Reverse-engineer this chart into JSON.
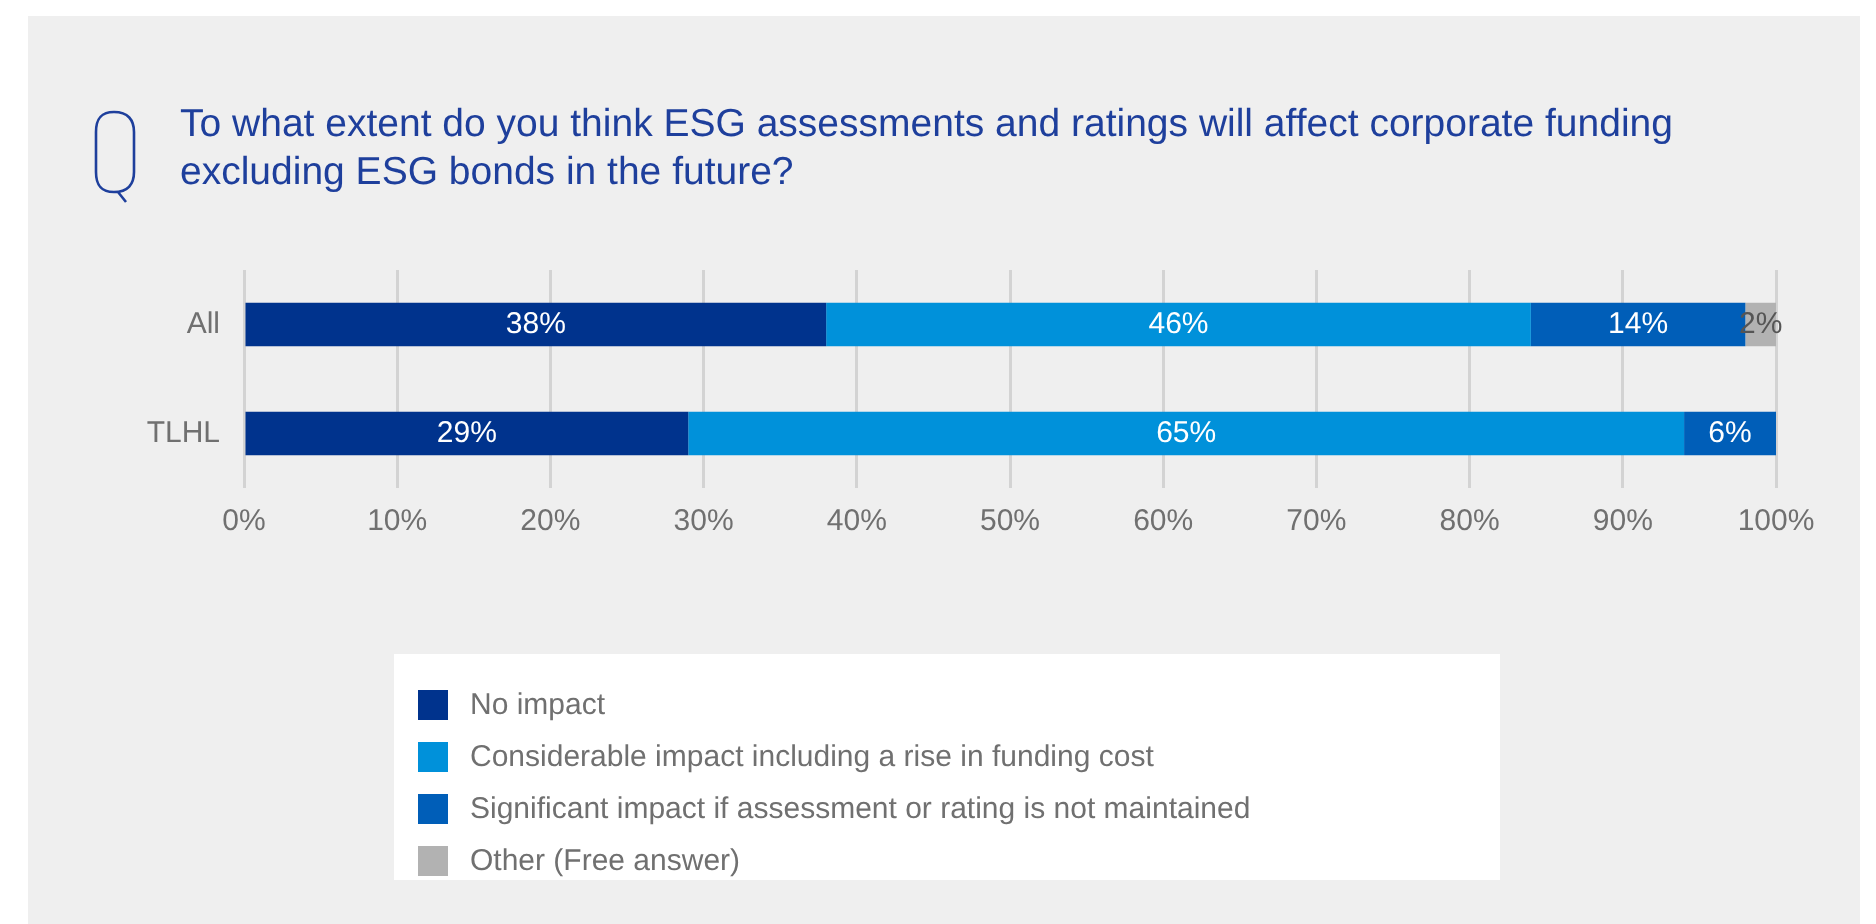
{
  "chart_data": {
    "type": "bar",
    "orientation": "horizontal",
    "stacked": true,
    "title": "To what extent do you think ESG assessments and ratings will affect corporate funding excluding ESG bonds in the future?",
    "categories": [
      "All",
      "TLHL"
    ],
    "series": [
      {
        "name": "No impact",
        "color": "#00338d",
        "values": [
          38,
          29
        ],
        "value_labels": [
          "38%",
          "29%"
        ]
      },
      {
        "name": "Considerable impact including a rise in funding cost",
        "color": "#0091da",
        "values": [
          46,
          65
        ],
        "value_labels": [
          "46%",
          "65%"
        ]
      },
      {
        "name": "Significant impact if assessment or rating is not maintained",
        "color": "#005eb8",
        "values": [
          14,
          6
        ],
        "value_labels": [
          "14%",
          "6%"
        ]
      },
      {
        "name": "Other (Free answer)",
        "color": "#b2b2b2",
        "values": [
          2,
          null
        ],
        "value_labels": [
          "2%",
          null
        ]
      }
    ],
    "xlim": [
      0,
      100
    ],
    "xticks": [
      {
        "value": 0,
        "label": "0%"
      },
      {
        "value": 10,
        "label": "10%"
      },
      {
        "value": 20,
        "label": "20%"
      },
      {
        "value": 30,
        "label": "30%"
      },
      {
        "value": 40,
        "label": "40%"
      },
      {
        "value": 50,
        "label": "50%"
      },
      {
        "value": 60,
        "label": "60%"
      },
      {
        "value": 70,
        "label": "70%"
      },
      {
        "value": 80,
        "label": "80%"
      },
      {
        "value": 90,
        "label": "90%"
      },
      {
        "value": 100,
        "label": "100%"
      }
    ],
    "grid": "x",
    "legend": "bottom"
  }
}
